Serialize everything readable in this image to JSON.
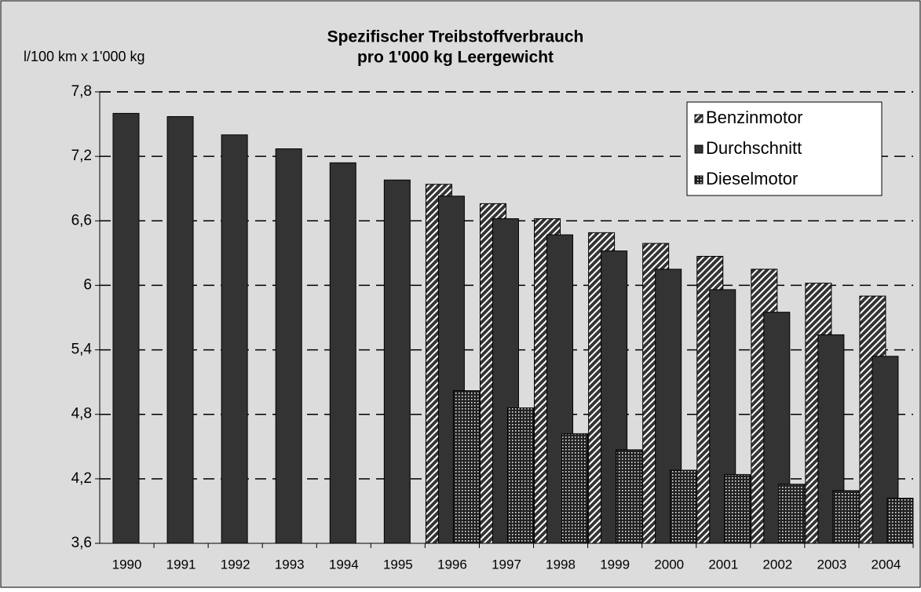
{
  "chart_data": {
    "type": "bar",
    "title": [
      "Spezifischer Treibstoffverbrauch",
      "pro 1'000 kg Leergewicht"
    ],
    "y_label": "l/100 km x 1'000 kg",
    "categories": [
      "1990",
      "1991",
      "1992",
      "1993",
      "1994",
      "1995",
      "1996",
      "1997",
      "1998",
      "1999",
      "2000",
      "2001",
      "2002",
      "2003",
      "2004"
    ],
    "series": [
      {
        "name": "Benzinmotor",
        "color": "#333333",
        "pattern": "hatch",
        "values": [
          null,
          null,
          null,
          null,
          null,
          null,
          6.94,
          6.76,
          6.62,
          6.49,
          6.39,
          6.27,
          6.15,
          6.02,
          5.9
        ]
      },
      {
        "name": "Durchschnitt",
        "color": "#333333",
        "pattern": "solid",
        "values": [
          7.6,
          7.57,
          7.4,
          7.27,
          7.14,
          6.98,
          6.83,
          6.62,
          6.47,
          6.32,
          6.15,
          5.96,
          5.75,
          5.54,
          5.34
        ]
      },
      {
        "name": "Dieselmotor",
        "color": "#333333",
        "pattern": "dots",
        "values": [
          null,
          null,
          null,
          null,
          null,
          null,
          5.02,
          4.86,
          4.62,
          4.47,
          4.28,
          4.24,
          4.15,
          4.09,
          4.02
        ]
      }
    ],
    "ylim": [
      3.6,
      7.8
    ],
    "yticks": [
      {
        "value": 3.6,
        "label": "3,6"
      },
      {
        "value": 4.2,
        "label": "4,2"
      },
      {
        "value": 4.8,
        "label": "4,8"
      },
      {
        "value": 5.4,
        "label": "5,4"
      },
      6,
      {
        "value": 6.6,
        "label": "6,6"
      },
      {
        "value": 7.2,
        "label": "7,2"
      },
      {
        "value": 7.8,
        "label": "7,8"
      }
    ],
    "grid": true,
    "legend": "upper right"
  }
}
